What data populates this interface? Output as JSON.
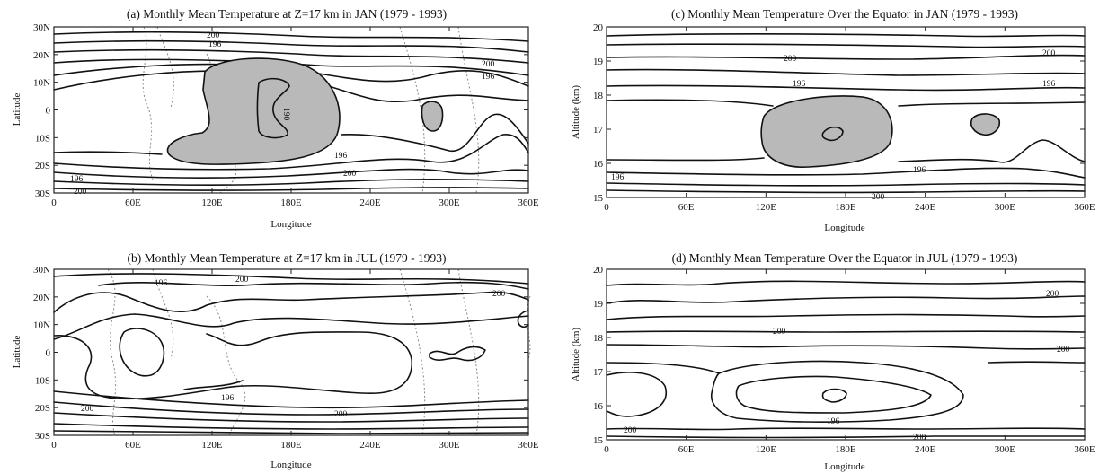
{
  "figure_name": "temperature-contour-panels",
  "chart_data": [
    {
      "id": "a",
      "type": "contour",
      "title": "(a) Monthly Mean Temperature at Z=17 km in JAN (1979 - 1993)",
      "xlabel": "Longitude",
      "ylabel": "Latitude",
      "xticks": [
        "0",
        "60E",
        "120E",
        "180E",
        "240E",
        "300E",
        "360E"
      ],
      "yticks": [
        "30S",
        "20S",
        "10S",
        "0",
        "10N",
        "20N",
        "30N"
      ],
      "xlim": [
        0,
        360
      ],
      "ylim": [
        -30,
        30
      ],
      "contour_labels": [
        "200",
        "196",
        "200",
        "196",
        "190",
        "196",
        "200",
        "196",
        "200"
      ],
      "shaded_regions": [
        "below 196"
      ]
    },
    {
      "id": "b",
      "type": "contour",
      "title": "(b) Monthly Mean Temperature at Z=17 km in JUL (1979 - 1993)",
      "xlabel": "Longitude",
      "ylabel": "Latitude",
      "xticks": [
        "0",
        "60E",
        "120E",
        "180E",
        "240E",
        "300E",
        "360E"
      ],
      "yticks": [
        "30S",
        "20S",
        "10S",
        "0",
        "10N",
        "20N",
        "30N"
      ],
      "xlim": [
        0,
        360
      ],
      "ylim": [
        -30,
        30
      ],
      "contour_labels": [
        "196",
        "200",
        "200",
        "196",
        "200",
        "200"
      ]
    },
    {
      "id": "c",
      "type": "contour",
      "title": "(c) Monthly Mean Temperature Over the Equator in JAN (1979 - 1993)",
      "xlabel": "Longitude",
      "ylabel": "Altitude (km)",
      "xticks": [
        "0",
        "60E",
        "120E",
        "180E",
        "240E",
        "300E",
        "360E"
      ],
      "yticks": [
        "15",
        "16",
        "17",
        "18",
        "19",
        "20"
      ],
      "xlim": [
        0,
        360
      ],
      "ylim": [
        15,
        20
      ],
      "contour_labels": [
        "200",
        "196",
        "200",
        "196",
        "196",
        "196",
        "200"
      ],
      "shaded_regions": [
        "below 196"
      ]
    },
    {
      "id": "d",
      "type": "contour",
      "title": "(d) Monthly Mean Temperature Over the Equator in JUL (1979 - 1993)",
      "xlabel": "Longitude",
      "ylabel": "Altitude (km)",
      "xticks": [
        "0",
        "60E",
        "120E",
        "180E",
        "240E",
        "300E",
        "360E"
      ],
      "yticks": [
        "15",
        "16",
        "17",
        "18",
        "19",
        "20"
      ],
      "xlim": [
        0,
        360
      ],
      "ylim": [
        15,
        20
      ],
      "contour_labels": [
        "200",
        "200",
        "200",
        "196",
        "200",
        "200"
      ]
    }
  ]
}
